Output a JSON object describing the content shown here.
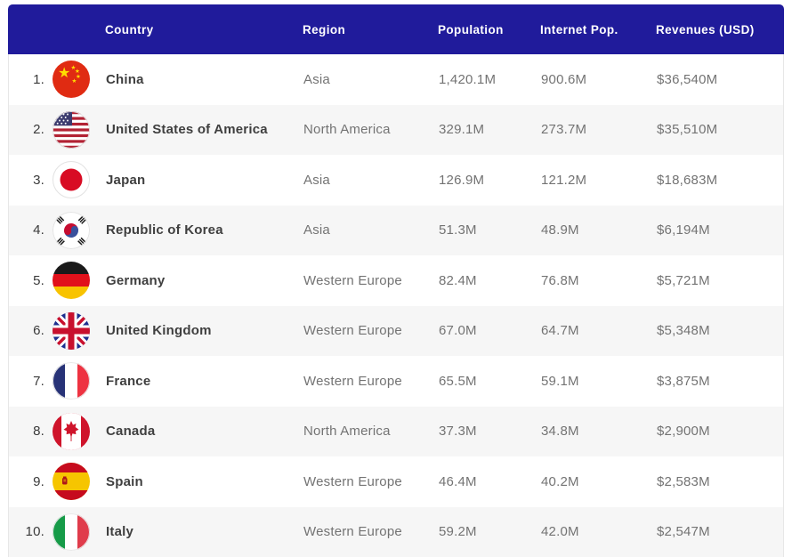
{
  "table": {
    "header_bg": "#201b9b",
    "row_alt_bg": "#f6f6f6",
    "columns": [
      "Country",
      "Region",
      "Population",
      "Internet Pop.",
      "Revenues (USD)"
    ],
    "rows": [
      {
        "rank": "1.",
        "flag": "china-flag-icon",
        "country": "China",
        "region": "Asia",
        "population": "1,420.1M",
        "internet_pop": "900.6M",
        "revenues": "$36,540M"
      },
      {
        "rank": "2.",
        "flag": "usa-flag-icon",
        "country": "United States of America",
        "region": "North America",
        "population": "329.1M",
        "internet_pop": "273.7M",
        "revenues": "$35,510M"
      },
      {
        "rank": "3.",
        "flag": "japan-flag-icon",
        "country": "Japan",
        "region": "Asia",
        "population": "126.9M",
        "internet_pop": "121.2M",
        "revenues": "$18,683M"
      },
      {
        "rank": "4.",
        "flag": "south-korea-flag-icon",
        "country": "Republic of Korea",
        "region": "Asia",
        "population": "51.3M",
        "internet_pop": "48.9M",
        "revenues": "$6,194M"
      },
      {
        "rank": "5.",
        "flag": "germany-flag-icon",
        "country": "Germany",
        "region": "Western Europe",
        "population": "82.4M",
        "internet_pop": "76.8M",
        "revenues": "$5,721M"
      },
      {
        "rank": "6.",
        "flag": "uk-flag-icon",
        "country": "United Kingdom",
        "region": "Western Europe",
        "population": "67.0M",
        "internet_pop": "64.7M",
        "revenues": "$5,348M"
      },
      {
        "rank": "7.",
        "flag": "france-flag-icon",
        "country": "France",
        "region": "Western Europe",
        "population": "65.5M",
        "internet_pop": "59.1M",
        "revenues": "$3,875M"
      },
      {
        "rank": "8.",
        "flag": "canada-flag-icon",
        "country": "Canada",
        "region": "North America",
        "population": "37.3M",
        "internet_pop": "34.8M",
        "revenues": "$2,900M"
      },
      {
        "rank": "9.",
        "flag": "spain-flag-icon",
        "country": "Spain",
        "region": "Western Europe",
        "population": "46.4M",
        "internet_pop": "40.2M",
        "revenues": "$2,583M"
      },
      {
        "rank": "10.",
        "flag": "italy-flag-icon",
        "country": "Italy",
        "region": "Western Europe",
        "population": "59.2M",
        "internet_pop": "42.0M",
        "revenues": "$2,547M"
      }
    ]
  }
}
